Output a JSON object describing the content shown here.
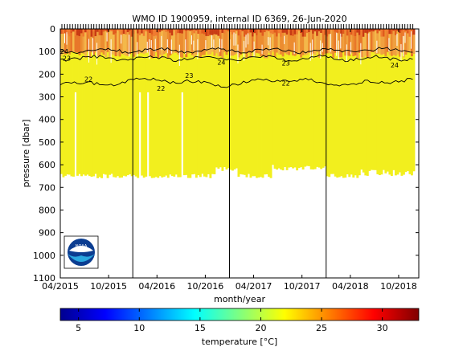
{
  "chart_data": {
    "type": "heatmap",
    "title": "WMO ID 1900959, internal ID 6369, 26-Jun-2020",
    "xlabel": "month/year",
    "ylabel": "pressure [dbar]",
    "colorbar_label": "temperature [°C]",
    "x_tick_labels": [
      "04/2015",
      "10/2015",
      "04/2016",
      "10/2016",
      "04/2017",
      "10/2017",
      "04/2018",
      "10/2018"
    ],
    "x_tick_months": [
      0,
      6,
      12,
      18,
      24,
      30,
      36,
      42
    ],
    "xlim_months": [
      0,
      44.5
    ],
    "ylim": [
      0,
      1100
    ],
    "y_reversed": true,
    "y_ticks": [
      0,
      100,
      200,
      300,
      400,
      500,
      600,
      700,
      800,
      900,
      1000,
      1100
    ],
    "colorbar_ticks": [
      5,
      10,
      15,
      20,
      25,
      30
    ],
    "colorbar_range": [
      3.5,
      33
    ],
    "year_boundaries_months": [
      9,
      21,
      33
    ],
    "field_regions": [
      {
        "name": "yellow-deep-water",
        "temp_c": 22,
        "color": "#f2ef1e",
        "from_month": 0,
        "to_month": 44,
        "depth_bottom_dbar": 650
      },
      {
        "name": "warm-upper-layer",
        "temp_c": 26,
        "color": "#f0a040",
        "depth_range_dbar": [
          0,
          110
        ]
      },
      {
        "name": "hot-surface-patches",
        "temp_c": 30,
        "color": "#c83a14",
        "depth_range_dbar": [
          0,
          25
        ]
      }
    ],
    "isotherms": [
      {
        "label": "24",
        "approx_depth_dbar": 95
      },
      {
        "label": "23",
        "approx_depth_dbar": 130
      },
      {
        "label": "22",
        "approx_depth_dbar": 235
      }
    ],
    "isotherm_labels": [
      {
        "text": "24",
        "month": 0.5,
        "dbar": 100
      },
      {
        "text": "23",
        "month": 0.8,
        "dbar": 130
      },
      {
        "text": "22",
        "month": 3.5,
        "dbar": 222
      },
      {
        "text": "22",
        "month": 12.5,
        "dbar": 262
      },
      {
        "text": "23",
        "month": 16,
        "dbar": 205
      },
      {
        "text": "24",
        "month": 20,
        "dbar": 148
      },
      {
        "text": "23",
        "month": 28,
        "dbar": 150
      },
      {
        "text": "22",
        "month": 28,
        "dbar": 240
      },
      {
        "text": "24",
        "month": 41.5,
        "dbar": 160
      },
      {
        "text": "24",
        "month": 47,
        "dbar": 100
      }
    ],
    "logo_text": "NOAA"
  }
}
